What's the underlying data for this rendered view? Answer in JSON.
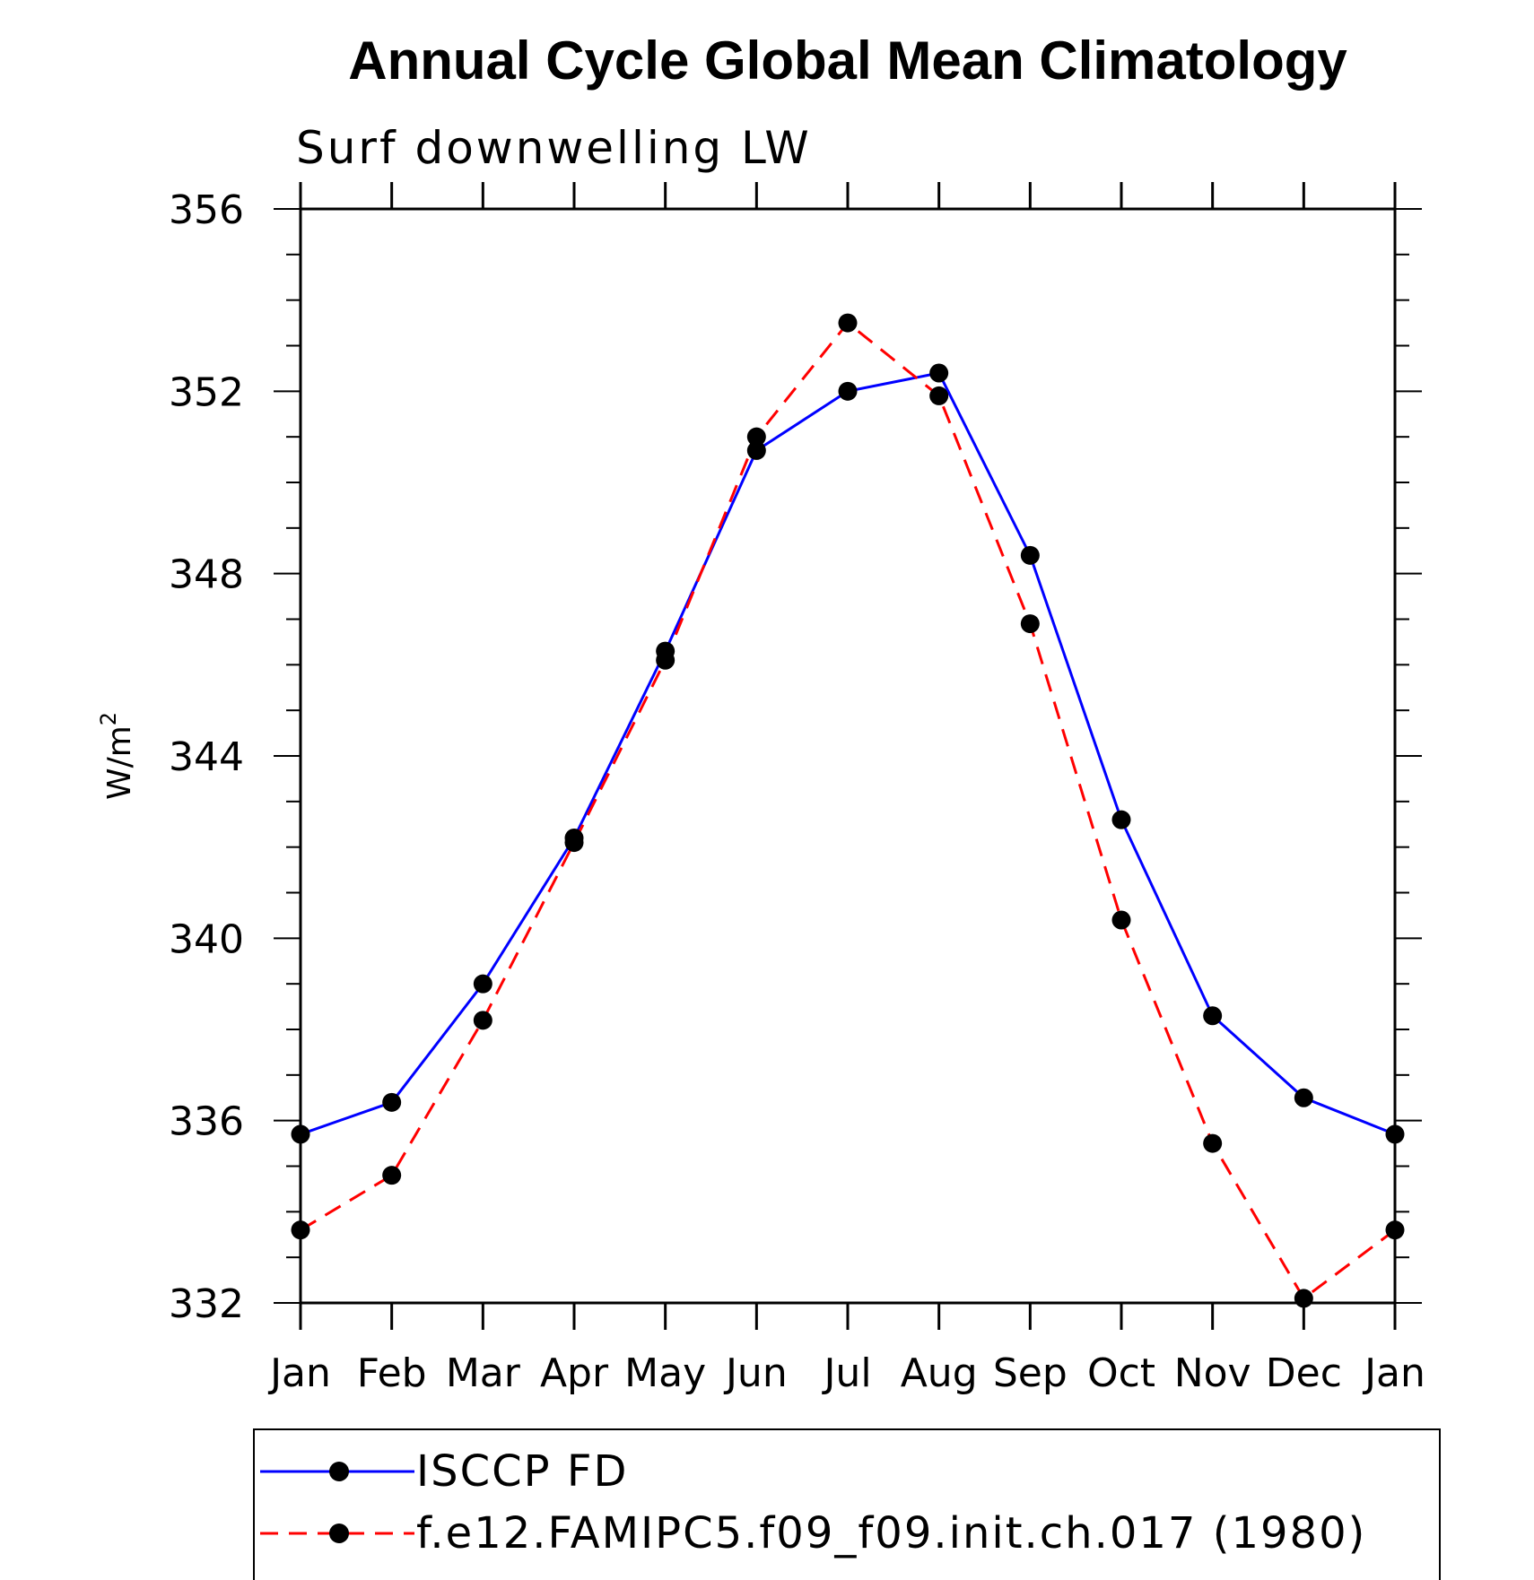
{
  "chart_data": {
    "type": "line",
    "title": "Annual Cycle Global Mean Climatology",
    "subtitle": "Surf downwelling LW",
    "ylabel": "W/m",
    "ylabel_sup": "2",
    "xlabel": "",
    "categories": [
      "Jan",
      "Feb",
      "Mar",
      "Apr",
      "May",
      "Jun",
      "Jul",
      "Aug",
      "Sep",
      "Oct",
      "Nov",
      "Dec",
      "Jan"
    ],
    "ylim": [
      332,
      356
    ],
    "yticks": [
      332,
      336,
      340,
      344,
      348,
      352,
      356
    ],
    "grid": false,
    "legend_position": "bottom",
    "series": [
      {
        "name": "ISCCP FD",
        "color": "#0000ff",
        "dash": "solid",
        "marker": "circle",
        "values": [
          335.7,
          336.4,
          339.0,
          342.2,
          346.3,
          350.7,
          352.0,
          352.4,
          348.4,
          342.6,
          338.3,
          336.5,
          335.7
        ]
      },
      {
        "name": "f.e12.FAMIPC5.f09_f09.init.ch.017 (1980)",
        "color": "#ff0000",
        "dash": "dashed",
        "marker": "circle",
        "values": [
          333.6,
          334.8,
          338.2,
          342.1,
          346.1,
          351.0,
          353.5,
          351.9,
          346.9,
          340.4,
          335.5,
          332.1,
          333.6
        ]
      }
    ]
  }
}
